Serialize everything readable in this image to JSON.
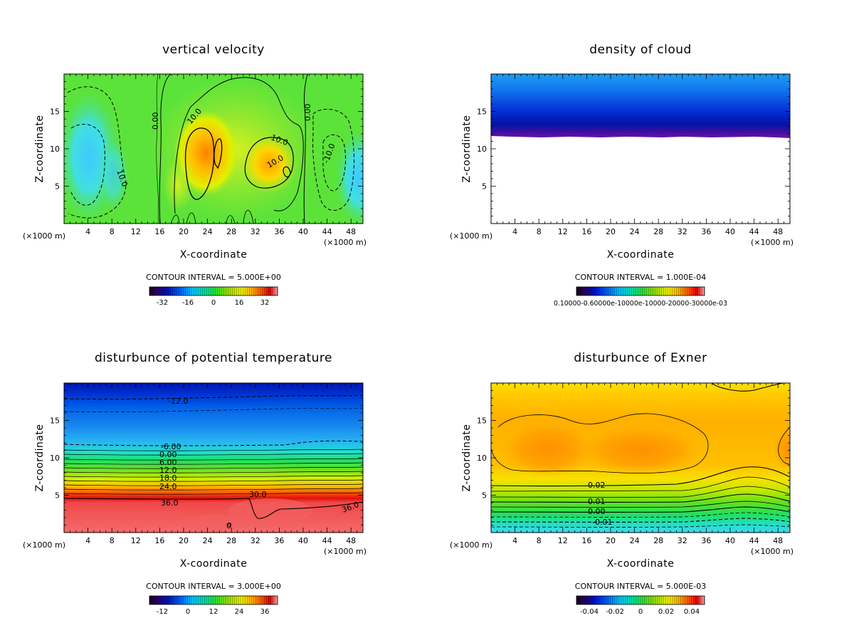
{
  "chart_data": [
    {
      "type": "heatmap",
      "title": "vertical velocity",
      "xlabel": "X-coordinate",
      "ylabel": "Z-coordinate",
      "x_unit": "(×1000 m)",
      "xlim": [
        0,
        50
      ],
      "ylim": [
        0,
        20
      ],
      "x_ticks": [
        "4",
        "8",
        "12",
        "16",
        "20",
        "24",
        "28",
        "32",
        "36",
        "40",
        "44",
        "48"
      ],
      "y_ticks": [
        "5",
        "10",
        "15"
      ],
      "contour_interval": "CONTOUR INTERVAL = 5.000E+00",
      "colorbar_ticks": [
        "-32",
        "-16",
        "0",
        "16",
        "32"
      ],
      "colorbar_range": [
        -40,
        40
      ],
      "contour_labels": [
        "10.0",
        "0.00",
        "10.0",
        "10.0",
        "0.00",
        "-10.0",
        "10.0"
      ]
    },
    {
      "type": "heatmap",
      "title": "density of cloud",
      "xlabel": "X-coordinate",
      "ylabel": "Z-coordinate",
      "x_unit": "(×1000 m)",
      "xlim": [
        0,
        50
      ],
      "ylim": [
        0,
        20
      ],
      "x_ticks": [
        "4",
        "8",
        "12",
        "16",
        "20",
        "24",
        "28",
        "32",
        "36",
        "40",
        "44",
        "48"
      ],
      "y_ticks": [
        "5",
        "10",
        "15"
      ],
      "contour_interval": "CONTOUR INTERVAL = 1.000E-04",
      "colorbar_tick_text": "0.10000-0.60000e-10000e-10000-20000-30000e-03",
      "contour_labels": []
    },
    {
      "type": "heatmap",
      "title": "disturbunce of potential temperature",
      "xlabel": "X-coordinate",
      "ylabel": "Z-coordinate",
      "x_unit": "(×1000 m)",
      "xlim": [
        0,
        50
      ],
      "ylim": [
        0,
        20
      ],
      "x_ticks": [
        "4",
        "8",
        "12",
        "16",
        "20",
        "24",
        "28",
        "32",
        "36",
        "40",
        "44",
        "48"
      ],
      "y_ticks": [
        "5",
        "10",
        "15"
      ],
      "contour_interval": "CONTOUR INTERVAL = 3.000E+00",
      "colorbar_ticks": [
        "-12",
        "0",
        "12",
        "24",
        "36"
      ],
      "colorbar_range": [
        -18,
        42
      ],
      "contour_labels": [
        "-12.0",
        "-6.00",
        "0.00",
        "6.00",
        "12.0",
        "18.0",
        "24.0",
        "30.0",
        "36.0",
        "36.0",
        "0"
      ]
    },
    {
      "type": "heatmap",
      "title": "disturbunce of Exner",
      "xlabel": "X-coordinate",
      "ylabel": "Z-coordinate",
      "x_unit": "(×1000 m)",
      "xlim": [
        0,
        50
      ],
      "ylim": [
        0,
        20
      ],
      "x_ticks": [
        "4",
        "8",
        "12",
        "16",
        "20",
        "24",
        "28",
        "32",
        "36",
        "40",
        "44",
        "48"
      ],
      "y_ticks": [
        "5",
        "10",
        "15"
      ],
      "contour_interval": "CONTOUR INTERVAL = 5.000E-03",
      "colorbar_ticks": [
        "-0.04",
        "-0.02",
        "0",
        "0.02",
        "0.04"
      ],
      "colorbar_range": [
        -0.05,
        0.05
      ],
      "contour_labels": [
        "0.02",
        "0.01",
        "0.00",
        "-0.01"
      ]
    }
  ]
}
